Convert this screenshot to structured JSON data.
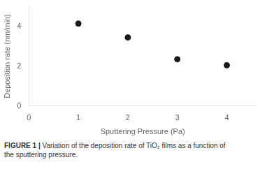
{
  "chart_data": {
    "type": "scatter",
    "x": [
      1,
      2,
      3,
      4
    ],
    "values": [
      4.15,
      3.45,
      2.35,
      2.05
    ],
    "color": "#1a1a1a",
    "xlabel": "Sputtering Pressure (Pa)",
    "ylabel": "Deposition rate (nm/min)",
    "xlim": [
      0,
      4.6
    ],
    "xticks": [
      0,
      1,
      2,
      3,
      4
    ],
    "ylim": [
      0,
      5.0
    ],
    "yticks": [
      0,
      2,
      4
    ],
    "grid": false,
    "annotations": [
      "FIGURE 1 |",
      "Variation of the deposition rate of TiO₂ films as a function of",
      "the sputtering pressure."
    ]
  }
}
